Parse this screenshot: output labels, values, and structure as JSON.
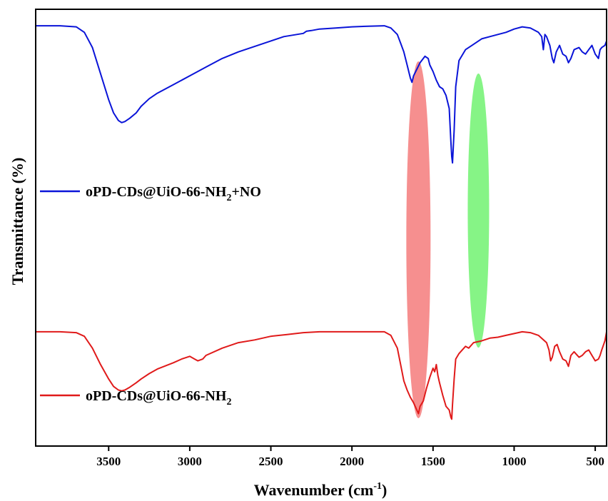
{
  "chart_data": {
    "type": "line",
    "xlabel": "Wavenumber (cm",
    "xlabel_sup": "-1",
    "xlabel_end": ")",
    "ylabel": "Transmittance (%)",
    "xlim": [
      3950,
      430
    ],
    "x_reversed": true,
    "x_ticks": [
      3500,
      3000,
      2500,
      2000,
      1500,
      1000,
      500
    ],
    "x_tick_labels": [
      "3500",
      "3000",
      "2500",
      "2000",
      "1500",
      "1000",
      "500"
    ],
    "y_ticks_shown": false,
    "grid": false,
    "legend_placement": "inline-left",
    "series": [
      {
        "name_parts": [
          "oPD-CDs@UiO-66-NH",
          "2",
          "+NO"
        ],
        "color": "#0a14d8",
        "x": [
          3950,
          3800,
          3700,
          3650,
          3600,
          3550,
          3500,
          3470,
          3440,
          3420,
          3400,
          3370,
          3330,
          3300,
          3250,
          3200,
          3100,
          3000,
          2900,
          2800,
          2700,
          2600,
          2500,
          2420,
          2300,
          2280,
          2250,
          2200,
          2100,
          2000,
          1900,
          1800,
          1760,
          1720,
          1700,
          1680,
          1660,
          1640,
          1630,
          1620,
          1600,
          1580,
          1560,
          1550,
          1530,
          1520,
          1500,
          1480,
          1460,
          1440,
          1420,
          1400,
          1390,
          1385,
          1380,
          1370,
          1360,
          1340,
          1300,
          1260,
          1220,
          1200,
          1150,
          1100,
          1050,
          1000,
          950,
          900,
          850,
          830,
          820,
          810,
          800,
          780,
          765,
          755,
          740,
          720,
          700,
          680,
          665,
          650,
          630,
          600,
          580,
          560,
          540,
          520,
          500,
          480,
          470,
          460,
          440,
          430
        ],
        "y": [
          98,
          98,
          97.5,
          95,
          88,
          76,
          64,
          58,
          54.5,
          53.5,
          54,
          55.5,
          58,
          61,
          64.5,
          67,
          71,
          75,
          79,
          83,
          86,
          88.5,
          91,
          93,
          94.5,
          95.5,
          95.8,
          96.5,
          97,
          97.5,
          97.8,
          98,
          97,
          94,
          90,
          86,
          80,
          74,
          72,
          75,
          78,
          81,
          83,
          84,
          83,
          80,
          77,
          73,
          70,
          69,
          66,
          60,
          45,
          38,
          35,
          50,
          70,
          82,
          87,
          89,
          91,
          92,
          93,
          94,
          95,
          96.5,
          97.5,
          97,
          95,
          93,
          87,
          94,
          93,
          89,
          83,
          81,
          86,
          89,
          85,
          84,
          81,
          83,
          87,
          88,
          86,
          85,
          87,
          89,
          85,
          83,
          87,
          88,
          89,
          91
        ]
      },
      {
        "name_parts": [
          "oPD-CDs@UiO-66-NH",
          "2",
          ""
        ],
        "color": "#e01a1a",
        "x": [
          3950,
          3800,
          3700,
          3650,
          3600,
          3550,
          3500,
          3470,
          3440,
          3420,
          3400,
          3370,
          3330,
          3300,
          3250,
          3200,
          3100,
          3050,
          3000,
          2970,
          2950,
          2920,
          2900,
          2800,
          2700,
          2600,
          2500,
          2400,
          2300,
          2200,
          2100,
          2000,
          1900,
          1800,
          1760,
          1720,
          1700,
          1680,
          1660,
          1640,
          1620,
          1600,
          1590,
          1580,
          1560,
          1540,
          1520,
          1500,
          1490,
          1480,
          1470,
          1460,
          1440,
          1420,
          1400,
          1390,
          1385,
          1380,
          1370,
          1360,
          1340,
          1300,
          1280,
          1250,
          1200,
          1150,
          1100,
          1050,
          1000,
          950,
          900,
          850,
          800,
          785,
          775,
          765,
          750,
          735,
          720,
          700,
          680,
          665,
          650,
          630,
          600,
          580,
          560,
          540,
          520,
          500,
          480,
          470,
          460,
          440,
          430
        ],
        "y": [
          53,
          53,
          52.5,
          50.5,
          44,
          35,
          27,
          23,
          21,
          20.5,
          21,
          22.5,
          25,
          27,
          30,
          32.5,
          36,
          38,
          39.5,
          38,
          37,
          38,
          40,
          44,
          47,
          48.5,
          50.5,
          51.5,
          52.5,
          53,
          53,
          53,
          53,
          53,
          51,
          44,
          35,
          26,
          21,
          17,
          14,
          10,
          8,
          12,
          15,
          22,
          28,
          33,
          31,
          35,
          29,
          25,
          18,
          12,
          10,
          6,
          5,
          13,
          27,
          38,
          41,
          45,
          44,
          47,
          48,
          49.5,
          50,
          51,
          52,
          53,
          52.5,
          51,
          47,
          43,
          37,
          39,
          45,
          46,
          42,
          38,
          37,
          34,
          40,
          42,
          39,
          40,
          42,
          43,
          40,
          37,
          38,
          40,
          43,
          48,
          53
        ]
      }
    ],
    "highlight_bands": [
      {
        "center": 1590,
        "color": "#f36a6a"
      },
      {
        "center": 1220,
        "color": "#5ef05e"
      }
    ]
  }
}
